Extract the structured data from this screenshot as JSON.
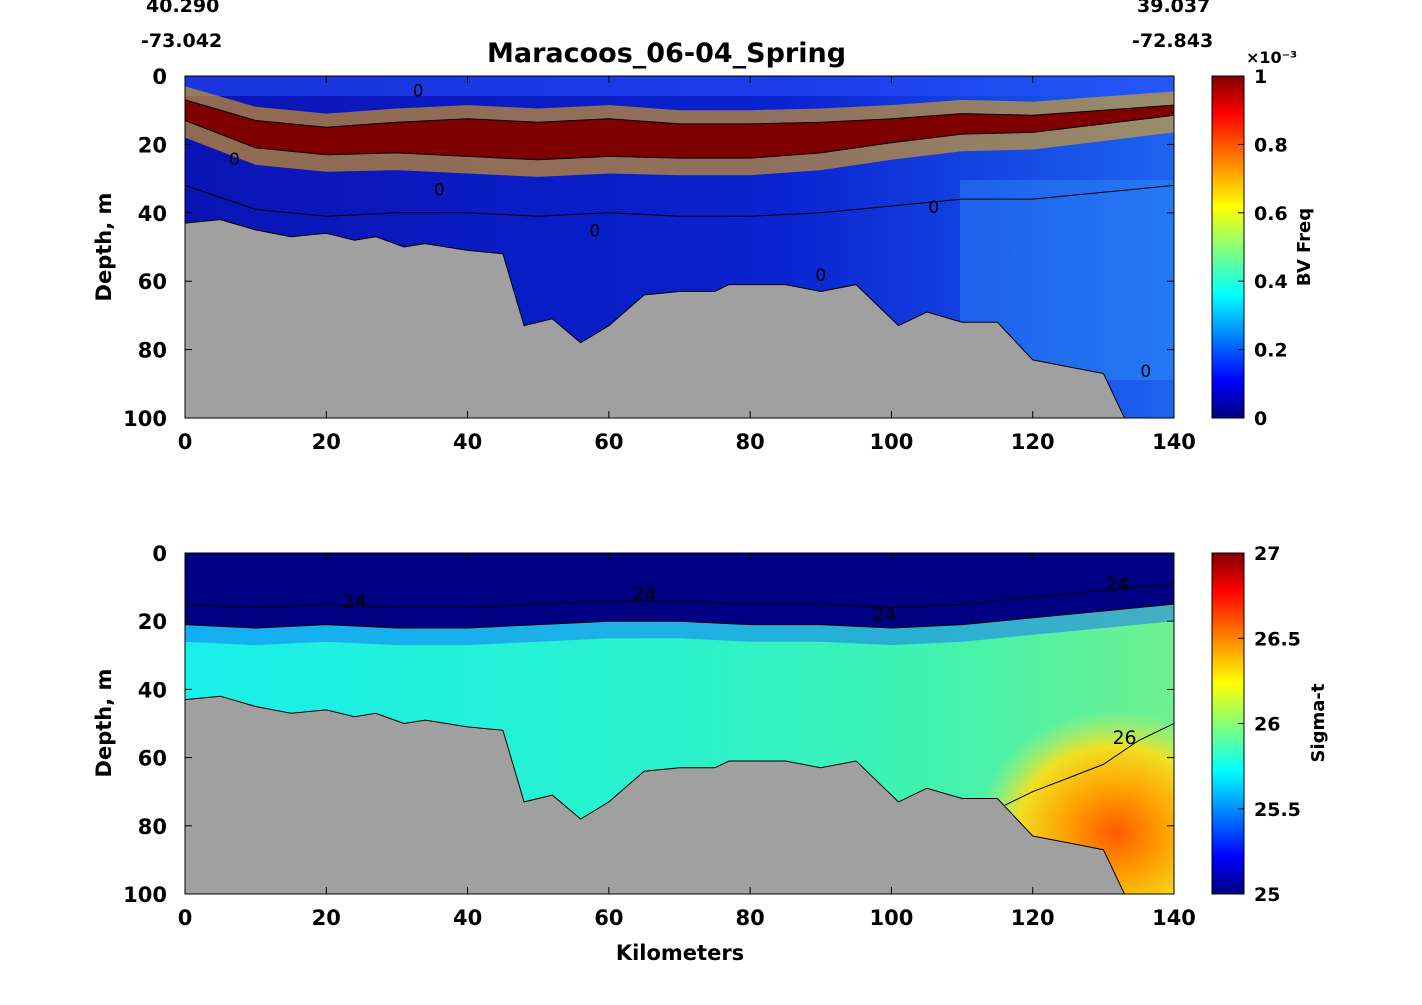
{
  "header": {
    "start_lat": "40.290",
    "start_lon": "-73.042",
    "end_lat": "39.037",
    "end_lon": "-72.843",
    "title": "Maracoos_06-04_Spring"
  },
  "chart_data": [
    {
      "type": "heatmap",
      "title": "Maracoos_06-04_Spring",
      "xlabel": "",
      "ylabel": "Depth, m",
      "xlim": [
        0,
        140
      ],
      "ylim": [
        0,
        100
      ],
      "y_inverted": true,
      "xticks": [
        0,
        20,
        40,
        60,
        80,
        100,
        120,
        140
      ],
      "yticks": [
        0,
        20,
        40,
        60,
        80,
        100
      ],
      "colormap": "jet",
      "colorbar": {
        "label": "BV Freq",
        "multiplier": "×10⁻³",
        "range": [
          0,
          1
        ],
        "ticks": [
          0,
          0.2,
          0.4,
          0.6,
          0.8,
          1
        ],
        "tick_labels": [
          "0",
          "0.2",
          "0.4",
          "0.6",
          "0.8",
          "1"
        ]
      },
      "contour_labels": [
        "0"
      ],
      "high_band": {
        "x": [
          0,
          10,
          20,
          30,
          40,
          50,
          60,
          70,
          80,
          90,
          100,
          110,
          120,
          130,
          140
        ],
        "depth": [
          10,
          17,
          19,
          18,
          18,
          19,
          18,
          19,
          19,
          18,
          16,
          14,
          14,
          12,
          10
        ],
        "thickness": [
          6,
          8,
          8,
          9,
          11,
          11,
          11,
          10,
          10,
          9,
          7,
          6,
          5,
          4,
          3
        ]
      }
    },
    {
      "type": "heatmap",
      "title": "",
      "xlabel": "Kilometers",
      "ylabel": "Depth, m",
      "xlim": [
        0,
        140
      ],
      "ylim": [
        0,
        100
      ],
      "y_inverted": true,
      "xticks": [
        0,
        20,
        40,
        60,
        80,
        100,
        120,
        140
      ],
      "yticks": [
        0,
        20,
        40,
        60,
        80,
        100
      ],
      "colormap": "jet",
      "colorbar": {
        "label": "Sigma-t",
        "range": [
          25,
          27
        ],
        "ticks": [
          25,
          25.5,
          26,
          26.5,
          27
        ],
        "tick_labels": [
          "25",
          "25.5",
          "26",
          "26.5",
          "27"
        ]
      },
      "contour_labels": [
        "24",
        "24",
        "24",
        "24",
        "26"
      ],
      "isopycnal_24": {
        "x": [
          0,
          10,
          20,
          30,
          40,
          50,
          60,
          70,
          80,
          90,
          100,
          110,
          120,
          130,
          140
        ],
        "depth": [
          15,
          16,
          15,
          16,
          16,
          15,
          14,
          14,
          15,
          15,
          16,
          15,
          13,
          11,
          9
        ]
      },
      "isopycnal_26": {
        "x": [
          115,
          120,
          125,
          130,
          135,
          140
        ],
        "depth": [
          75,
          70,
          66,
          62,
          55,
          50
        ]
      }
    }
  ],
  "bathymetry": {
    "x": [
      0,
      5,
      10,
      15,
      20,
      24,
      27,
      31,
      34,
      40,
      45,
      48,
      52,
      56,
      60,
      65,
      70,
      75,
      77,
      80,
      85,
      90,
      95,
      99,
      101,
      105,
      110,
      115,
      120,
      125,
      130,
      133
    ],
    "depth": [
      43,
      42,
      45,
      47,
      46,
      48,
      47,
      50,
      49,
      51,
      52,
      73,
      71,
      78,
      73,
      64,
      63,
      63,
      61,
      61,
      61,
      63,
      61,
      69,
      73,
      69,
      72,
      72,
      83,
      85,
      87,
      100
    ]
  },
  "colors": {
    "seafloor": "#a0a0a0",
    "band_high": "#7f0000",
    "upper_layer": "#000082"
  }
}
